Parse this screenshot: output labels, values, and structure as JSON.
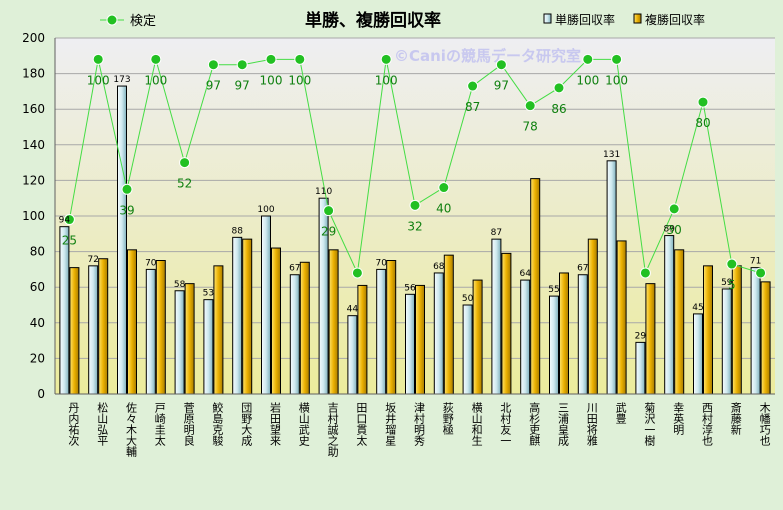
{
  "watermark": "©Caniの競馬データ研究室",
  "chart_data": {
    "type": "bar",
    "title": "単勝、複勝回収率",
    "ylim": [
      0,
      200
    ],
    "yticks": [
      0,
      20,
      40,
      60,
      80,
      100,
      120,
      140,
      160,
      180,
      200
    ],
    "grid": true,
    "legend": {
      "placement": "top"
    },
    "categories": [
      "丹内 祐次",
      "松山 弘平",
      "佐々木 大輔",
      "戸崎 圭太",
      "菅原 明良",
      "鮫島 克駿",
      "団野 大成",
      "岩田 望来",
      "横山 武史",
      "吉村 誠之助",
      "田口 貫太",
      "坂井 瑠星",
      "津村 明秀",
      "荻野 極",
      "横山 和生",
      "北村 友一",
      "高杉 吏麒",
      "三浦 皇成",
      "川田 将雅",
      "武 豊",
      "菊沢 一樹",
      "幸 英明",
      "西村 淳也",
      "斎藤 新",
      "木幡 巧也"
    ],
    "series": [
      {
        "name": "単勝回収率",
        "color": "#cfe9ef",
        "values": [
          94,
          72,
          173,
          70,
          58,
          53,
          88,
          100,
          67,
          110,
          44,
          70,
          56,
          68,
          50,
          87,
          64,
          55,
          67,
          131,
          29,
          89,
          45,
          59,
          71
        ]
      },
      {
        "name": "複勝回収率",
        "color": "#eab000",
        "values": [
          71,
          76,
          81,
          75,
          62,
          72,
          87,
          82,
          74,
          81,
          61,
          75,
          61,
          78,
          64,
          79,
          121,
          68,
          87,
          86,
          62,
          81,
          72,
          72,
          63
        ]
      },
      {
        "name": "検定",
        "type": "line",
        "color": "#22c022",
        "plotted": [
          98,
          188,
          115,
          188,
          130,
          185,
          185,
          188,
          188,
          103,
          68,
          188,
          106,
          116,
          173,
          185,
          162,
          172,
          188,
          188,
          68,
          104,
          164,
          73,
          68
        ],
        "labels": [
          "25",
          "100",
          "39",
          "100",
          "52",
          "97",
          "97",
          "100",
          "100",
          "29",
          "",
          "100",
          "32",
          "40",
          "87",
          "97",
          "78",
          "86",
          "100",
          "100",
          "",
          "30",
          "80",
          "5",
          ""
        ]
      }
    ]
  }
}
